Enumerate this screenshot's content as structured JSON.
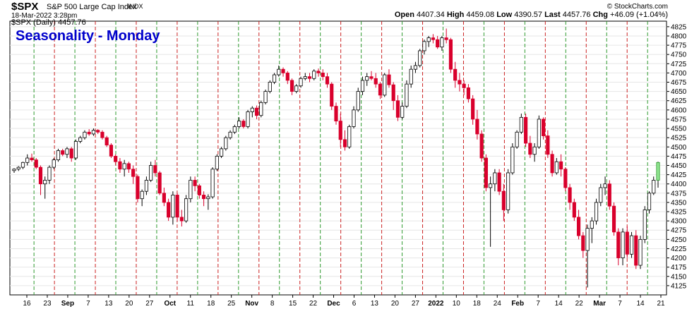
{
  "header": {
    "symbol": "$SPX",
    "description": "S&P 500 Large Cap Index",
    "exchange": "INDX",
    "datetime": "18-Mar-2022 3:28pm",
    "credit": "© StockCharts.com",
    "legend": "$SPX (Daily) 4457.76",
    "open_label": "Open",
    "open": "4407.34",
    "high_label": "High",
    "high": "4459.08",
    "low_label": "Low",
    "low": "4390.57",
    "last_label": "Last",
    "last": "4457.76",
    "chg_label": "Chg",
    "chg": "+46.09 (+1.04%)"
  },
  "chart_data": {
    "type": "candlestick",
    "title": "Seasonality - Monday",
    "ylim": [
      4100,
      4840
    ],
    "y_ticks": [
      4125,
      4150,
      4175,
      4200,
      4225,
      4250,
      4275,
      4300,
      4325,
      4350,
      4375,
      4400,
      4425,
      4450,
      4475,
      4500,
      4525,
      4550,
      4575,
      4600,
      4625,
      4650,
      4675,
      4700,
      4725,
      4750,
      4775,
      4800,
      4825
    ],
    "x_ticks": [
      "16",
      "23",
      "Sep",
      "7",
      "13",
      "20",
      "27",
      "Oct",
      "11",
      "18",
      "25",
      "Nov",
      "8",
      "15",
      "22",
      "Dec",
      "6",
      "13",
      "20",
      "27",
      "2022",
      "10",
      "18",
      "24",
      "Feb",
      "7",
      "14",
      "22",
      "Mar",
      "7",
      "14",
      "21"
    ],
    "up_color": "#ffffff",
    "down_color": "#d9002c",
    "grid_green": "#2e9a2e",
    "grid_red": "#cc2222",
    "candles": [
      [
        4436,
        4442,
        4430,
        4440
      ],
      [
        4440,
        4448,
        4435,
        4445
      ],
      [
        4445,
        4460,
        4440,
        4458
      ],
      [
        4458,
        4480,
        4450,
        4470
      ],
      [
        4470,
        4482,
        4460,
        4465
      ],
      [
        4465,
        4470,
        4440,
        4445
      ],
      [
        4445,
        4450,
        4370,
        4400
      ],
      [
        4400,
        4420,
        4360,
        4410
      ],
      [
        4410,
        4450,
        4400,
        4445
      ],
      [
        4445,
        4470,
        4440,
        4465
      ],
      [
        4465,
        4495,
        4460,
        4490
      ],
      [
        4490,
        4495,
        4475,
        4480
      ],
      [
        4480,
        4500,
        4470,
        4495
      ],
      [
        4495,
        4500,
        4460,
        4470
      ],
      [
        4470,
        4520,
        4465,
        4515
      ],
      [
        4515,
        4530,
        4510,
        4525
      ],
      [
        4525,
        4545,
        4520,
        4540
      ],
      [
        4540,
        4548,
        4530,
        4535
      ],
      [
        4535,
        4550,
        4530,
        4545
      ],
      [
        4545,
        4548,
        4535,
        4540
      ],
      [
        4540,
        4545,
        4520,
        4525
      ],
      [
        4525,
        4530,
        4500,
        4505
      ],
      [
        4505,
        4510,
        4470,
        4475
      ],
      [
        4475,
        4480,
        4450,
        4460
      ],
      [
        4460,
        4470,
        4430,
        4440
      ],
      [
        4440,
        4465,
        4420,
        4455
      ],
      [
        4455,
        4460,
        4430,
        4440
      ],
      [
        4440,
        4450,
        4400,
        4420
      ],
      [
        4420,
        4425,
        4350,
        4360
      ],
      [
        4360,
        4385,
        4340,
        4380
      ],
      [
        4380,
        4420,
        4370,
        4410
      ],
      [
        4410,
        4460,
        4405,
        4450
      ],
      [
        4450,
        4465,
        4420,
        4430
      ],
      [
        4430,
        4435,
        4370,
        4375
      ],
      [
        4375,
        4390,
        4340,
        4350
      ],
      [
        4350,
        4360,
        4300,
        4310
      ],
      [
        4310,
        4380,
        4290,
        4370
      ],
      [
        4370,
        4375,
        4300,
        4310
      ],
      [
        4310,
        4330,
        4285,
        4300
      ],
      [
        4300,
        4370,
        4295,
        4360
      ],
      [
        4360,
        4420,
        4350,
        4410
      ],
      [
        4410,
        4420,
        4380,
        4395
      ],
      [
        4395,
        4400,
        4360,
        4370
      ],
      [
        4370,
        4380,
        4340,
        4360
      ],
      [
        4360,
        4372,
        4330,
        4365
      ],
      [
        4365,
        4445,
        4360,
        4440
      ],
      [
        4440,
        4480,
        4435,
        4475
      ],
      [
        4475,
        4500,
        4470,
        4495
      ],
      [
        4495,
        4530,
        4490,
        4525
      ],
      [
        4525,
        4545,
        4520,
        4540
      ],
      [
        4540,
        4560,
        4535,
        4555
      ],
      [
        4555,
        4580,
        4550,
        4570
      ],
      [
        4570,
        4575,
        4550,
        4555
      ],
      [
        4555,
        4600,
        4550,
        4595
      ],
      [
        4595,
        4610,
        4580,
        4605
      ],
      [
        4605,
        4612,
        4575,
        4585
      ],
      [
        4585,
        4625,
        4580,
        4620
      ],
      [
        4620,
        4655,
        4615,
        4650
      ],
      [
        4650,
        4680,
        4645,
        4675
      ],
      [
        4675,
        4700,
        4670,
        4695
      ],
      [
        4695,
        4720,
        4690,
        4710
      ],
      [
        4710,
        4715,
        4690,
        4700
      ],
      [
        4700,
        4705,
        4670,
        4680
      ],
      [
        4680,
        4685,
        4640,
        4650
      ],
      [
        4650,
        4670,
        4645,
        4665
      ],
      [
        4665,
        4690,
        4660,
        4685
      ],
      [
        4685,
        4700,
        4680,
        4690
      ],
      [
        4690,
        4700,
        4675,
        4685
      ],
      [
        4685,
        4710,
        4680,
        4705
      ],
      [
        4705,
        4712,
        4690,
        4700
      ],
      [
        4700,
        4710,
        4680,
        4690
      ],
      [
        4690,
        4700,
        4660,
        4670
      ],
      [
        4670,
        4675,
        4600,
        4610
      ],
      [
        4610,
        4620,
        4560,
        4570
      ],
      [
        4570,
        4590,
        4500,
        4520
      ],
      [
        4520,
        4545,
        4490,
        4500
      ],
      [
        4500,
        4560,
        4495,
        4555
      ],
      [
        4555,
        4610,
        4550,
        4600
      ],
      [
        4600,
        4660,
        4595,
        4650
      ],
      [
        4650,
        4690,
        4640,
        4680
      ],
      [
        4680,
        4700,
        4665,
        4690
      ],
      [
        4690,
        4705,
        4680,
        4685
      ],
      [
        4685,
        4700,
        4660,
        4670
      ],
      [
        4670,
        4675,
        4630,
        4640
      ],
      [
        4640,
        4700,
        4635,
        4695
      ],
      [
        4695,
        4710,
        4660,
        4668
      ],
      [
        4668,
        4675,
        4600,
        4625
      ],
      [
        4625,
        4640,
        4570,
        4580
      ],
      [
        4580,
        4620,
        4575,
        4610
      ],
      [
        4610,
        4680,
        4605,
        4670
      ],
      [
        4670,
        4720,
        4660,
        4710
      ],
      [
        4710,
        4730,
        4700,
        4720
      ],
      [
        4720,
        4765,
        4715,
        4760
      ],
      [
        4760,
        4790,
        4750,
        4785
      ],
      [
        4785,
        4800,
        4770,
        4795
      ],
      [
        4795,
        4805,
        4780,
        4790
      ],
      [
        4790,
        4800,
        4765,
        4770
      ],
      [
        4770,
        4800,
        4760,
        4795
      ],
      [
        4795,
        4820,
        4780,
        4790
      ],
      [
        4790,
        4795,
        4700,
        4710
      ],
      [
        4710,
        4730,
        4660,
        4680
      ],
      [
        4680,
        4700,
        4650,
        4670
      ],
      [
        4670,
        4680,
        4640,
        4660
      ],
      [
        4660,
        4670,
        4620,
        4630
      ],
      [
        4630,
        4640,
        4560,
        4575
      ],
      [
        4575,
        4600,
        4520,
        4535
      ],
      [
        4535,
        4545,
        4460,
        4470
      ],
      [
        4470,
        4480,
        4380,
        4390
      ],
      [
        4390,
        4420,
        4230,
        4400
      ],
      [
        4400,
        4440,
        4380,
        4430
      ],
      [
        4430,
        4440,
        4370,
        4380
      ],
      [
        4380,
        4400,
        4300,
        4330
      ],
      [
        4330,
        4440,
        4320,
        4430
      ],
      [
        4430,
        4510,
        4425,
        4500
      ],
      [
        4500,
        4545,
        4495,
        4540
      ],
      [
        4540,
        4590,
        4535,
        4580
      ],
      [
        4580,
        4590,
        4500,
        4510
      ],
      [
        4510,
        4530,
        4470,
        4480
      ],
      [
        4480,
        4510,
        4460,
        4500
      ],
      [
        4500,
        4585,
        4495,
        4575
      ],
      [
        4575,
        4580,
        4520,
        4530
      ],
      [
        4530,
        4545,
        4470,
        4480
      ],
      [
        4480,
        4490,
        4420,
        4430
      ],
      [
        4430,
        4470,
        4425,
        4460
      ],
      [
        4460,
        4480,
        4420,
        4440
      ],
      [
        4440,
        4445,
        4380,
        4390
      ],
      [
        4390,
        4400,
        4330,
        4350
      ],
      [
        4350,
        4360,
        4300,
        4310
      ],
      [
        4310,
        4330,
        4250,
        4260
      ],
      [
        4260,
        4270,
        4200,
        4220
      ],
      [
        4220,
        4290,
        4120,
        4280
      ],
      [
        4280,
        4310,
        4240,
        4300
      ],
      [
        4300,
        4360,
        4290,
        4350
      ],
      [
        4350,
        4400,
        4340,
        4390
      ],
      [
        4390,
        4420,
        4370,
        4400
      ],
      [
        4400,
        4410,
        4330,
        4340
      ],
      [
        4340,
        4350,
        4260,
        4270
      ],
      [
        4270,
        4280,
        4180,
        4200
      ],
      [
        4200,
        4280,
        4180,
        4270
      ],
      [
        4270,
        4285,
        4200,
        4210
      ],
      [
        4210,
        4270,
        4200,
        4260
      ],
      [
        4260,
        4275,
        4170,
        4180
      ],
      [
        4180,
        4260,
        4170,
        4250
      ],
      [
        4250,
        4340,
        4240,
        4330
      ],
      [
        4330,
        4380,
        4320,
        4375
      ],
      [
        4375,
        4420,
        4370,
        4410
      ],
      [
        4410,
        4460,
        4390,
        4458
      ]
    ]
  }
}
